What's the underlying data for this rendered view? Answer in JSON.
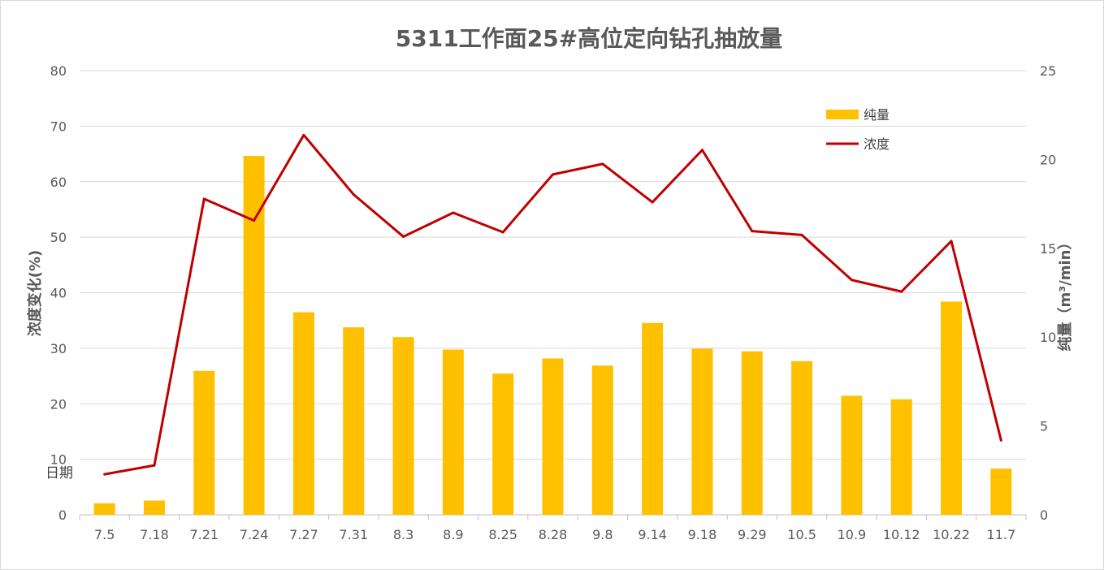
{
  "chart_data": {
    "type": "bar",
    "title": "5311工作面25#高位定向钻孔抽放量",
    "annotation": "日期",
    "y_left_label": "浓度变化(%)",
    "y_right_label": "纯量（m³/min）",
    "y_left_lim": [
      0,
      80
    ],
    "y_left_ticks": [
      "0",
      "10",
      "20",
      "30",
      "40",
      "50",
      "60",
      "70",
      "80"
    ],
    "y_right_lim": [
      0,
      25
    ],
    "y_right_ticks": [
      "0",
      "5",
      "10",
      "15",
      "20",
      "25"
    ],
    "grid": true,
    "legend_position": "top-right",
    "categories": [
      "7.5",
      "7.18",
      "7.21",
      "7.24",
      "7.27",
      "7.31",
      "8.3",
      "8.9",
      "8.25",
      "8.28",
      "9.8",
      "9.14",
      "9.18",
      "9.29",
      "10.5",
      "10.9",
      "10.12",
      "10.22",
      "11.7"
    ],
    "series": [
      {
        "name": "纯量",
        "type": "bar",
        "axis": "right",
        "color": "#FFC000",
        "values": [
          0.65,
          0.8,
          8.1,
          20.2,
          11.4,
          10.55,
          10.0,
          9.3,
          7.95,
          8.8,
          8.4,
          10.8,
          9.35,
          9.2,
          8.65,
          6.7,
          6.5,
          12.0,
          2.6
        ]
      },
      {
        "name": "浓度",
        "type": "line",
        "axis": "left",
        "color": "#C00000",
        "values": [
          7.3,
          8.9,
          56.9,
          53.0,
          68.4,
          57.7,
          50.1,
          54.4,
          50.9,
          61.3,
          63.2,
          56.3,
          65.7,
          51.1,
          50.4,
          42.3,
          40.2,
          49.3,
          13.4
        ]
      }
    ]
  }
}
